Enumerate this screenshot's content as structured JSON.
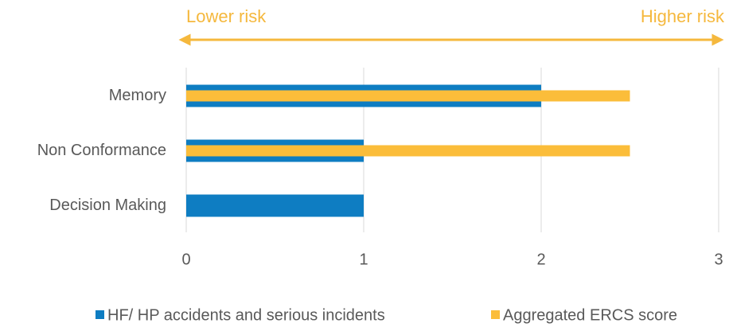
{
  "chart_data": {
    "type": "bar",
    "orientation": "horizontal",
    "annotations": [
      "Lower risk",
      "Higher risk"
    ],
    "categories": [
      "Memory",
      "Non Conformance",
      "Decision Making"
    ],
    "series": [
      {
        "name": "HF/ HP accidents and serious incidents",
        "color": "#0e7dc2",
        "values": [
          2,
          1,
          1
        ]
      },
      {
        "name": "Aggregated ERCS score",
        "color": "#fbbd3a",
        "values": [
          2.5,
          2.5,
          0
        ]
      }
    ],
    "xlim": [
      0,
      3
    ],
    "xticks": [
      0,
      1,
      2,
      3
    ],
    "grid": true,
    "legend": "bottom"
  }
}
